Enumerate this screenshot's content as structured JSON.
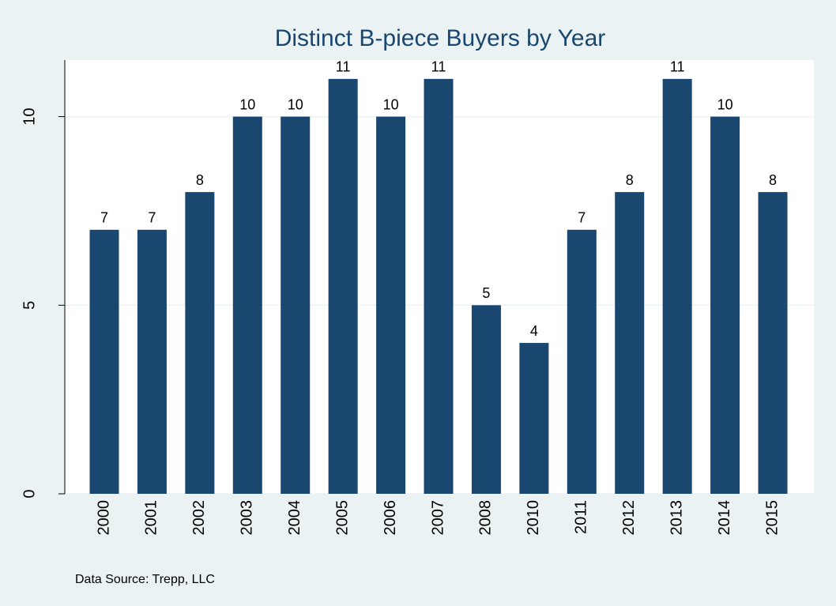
{
  "chart_data": {
    "type": "bar",
    "title": "Distinct B-piece Buyers by Year",
    "categories": [
      "2000",
      "2001",
      "2002",
      "2003",
      "2004",
      "2005",
      "2006",
      "2007",
      "2008",
      "2010",
      "2011",
      "2012",
      "2013",
      "2014",
      "2015"
    ],
    "values": [
      7,
      7,
      8,
      10,
      10,
      11,
      10,
      11,
      5,
      4,
      7,
      8,
      11,
      10,
      8
    ],
    "color": "#1a476f",
    "ylim": [
      0,
      11.5
    ],
    "yticks": [
      0,
      5,
      10
    ],
    "grid": true,
    "note": "Data Source: Trepp, LLC"
  }
}
